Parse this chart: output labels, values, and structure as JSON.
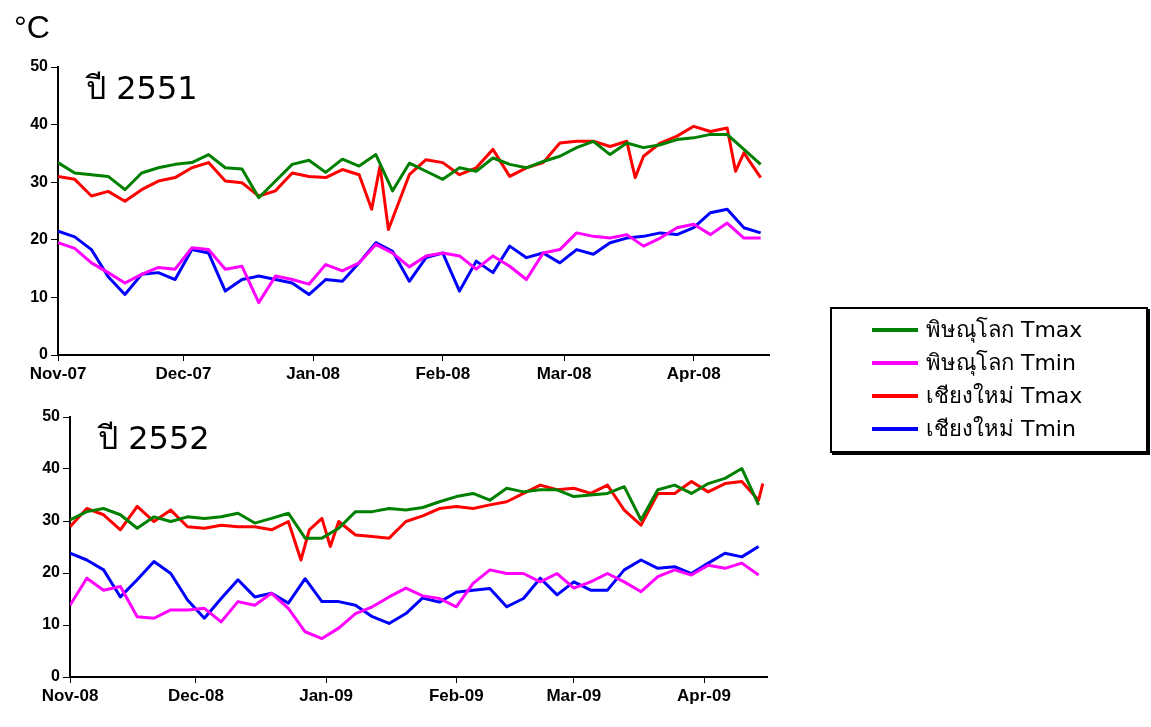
{
  "chart_data": [
    {
      "type": "line",
      "title": "ปี 2551",
      "ylabel": "°C",
      "x": [
        "2007-11-01",
        "2007-11-05",
        "2007-11-09",
        "2007-11-13",
        "2007-11-17",
        "2007-11-21",
        "2007-11-25",
        "2007-11-29",
        "2007-12-03",
        "2007-12-07",
        "2007-12-11",
        "2007-12-15",
        "2007-12-19",
        "2007-12-23",
        "2007-12-27",
        "2007-12-31",
        "2008-01-04",
        "2008-01-08",
        "2008-01-12",
        "2008-01-16",
        "2008-01-20",
        "2008-01-24",
        "2008-01-28",
        "2008-02-01",
        "2008-02-05",
        "2008-02-09",
        "2008-02-13",
        "2008-02-17",
        "2008-02-21",
        "2008-02-25",
        "2008-02-29",
        "2008-03-04",
        "2008-03-08",
        "2008-03-12",
        "2008-03-16",
        "2008-03-20",
        "2008-03-24",
        "2008-03-28",
        "2008-04-01",
        "2008-04-05",
        "2008-04-09",
        "2008-04-13",
        "2008-04-17"
      ],
      "series": [
        {
          "name": "พิษณุโลก Tmax",
          "color": "#008000",
          "values": [
            33.4,
            31.6,
            31.3,
            31.0,
            28.7,
            31.6,
            32.5,
            33.1,
            33.4,
            34.8,
            32.5,
            32.3,
            27.3,
            30.2,
            33.1,
            33.8,
            31.7,
            34.0,
            32.8,
            34.8,
            28.5,
            33.3,
            31.9,
            30.5,
            32.5,
            31.9,
            34.2,
            33.1,
            32.5,
            33.6,
            34.5,
            36.0,
            37.1,
            34.8,
            36.8,
            36.0,
            36.5,
            37.4,
            37.7,
            38.3,
            38.3,
            35.7,
            33.1
          ]
        },
        {
          "name": "พิษณุโลก Tmin",
          "color": "#ff00ff",
          "values": [
            19.5,
            18.5,
            16.0,
            14.3,
            12.5,
            14.0,
            15.2,
            14.9,
            18.6,
            18.3,
            14.9,
            15.4,
            9.1,
            13.7,
            13.1,
            12.3,
            15.7,
            14.6,
            16.0,
            19.2,
            17.7,
            15.3,
            17.2,
            17.7,
            17.2,
            14.9,
            17.2,
            15.4,
            13.1,
            17.7,
            18.3,
            21.2,
            20.6,
            20.3,
            20.9,
            18.9,
            20.3,
            22.1,
            22.7,
            20.9,
            22.9,
            20.3,
            20.3
          ]
        },
        {
          "name": "เชียงใหม่ Tmax",
          "color": "#ff0000",
          "x": [
            "2007-11-01",
            "2007-11-05",
            "2007-11-09",
            "2007-11-13",
            "2007-11-17",
            "2007-11-21",
            "2007-11-25",
            "2007-11-29",
            "2007-12-03",
            "2007-12-07",
            "2007-12-11",
            "2007-12-15",
            "2007-12-19",
            "2007-12-23",
            "2007-12-27",
            "2007-12-31",
            "2008-01-04",
            "2008-01-08",
            "2008-01-12",
            "2008-01-15",
            "2008-01-17",
            "2008-01-19",
            "2008-01-24",
            "2008-01-28",
            "2008-02-01",
            "2008-02-05",
            "2008-02-09",
            "2008-02-13",
            "2008-02-17",
            "2008-02-21",
            "2008-02-25",
            "2008-02-29",
            "2008-03-04",
            "2008-03-08",
            "2008-03-12",
            "2008-03-16",
            "2008-03-18",
            "2008-03-20",
            "2008-03-24",
            "2008-03-28",
            "2008-04-01",
            "2008-04-05",
            "2008-04-09",
            "2008-04-11",
            "2008-04-13",
            "2008-04-17"
          ],
          "values": [
            31.0,
            30.5,
            27.6,
            28.4,
            26.7,
            28.7,
            30.2,
            30.8,
            32.5,
            33.4,
            30.2,
            29.9,
            27.6,
            28.5,
            31.6,
            31.0,
            30.8,
            32.2,
            31.3,
            25.3,
            32.8,
            21.8,
            31.3,
            33.9,
            33.4,
            31.3,
            32.5,
            35.7,
            31.0,
            32.5,
            33.4,
            36.8,
            37.1,
            37.1,
            36.2,
            37.1,
            30.8,
            34.5,
            36.8,
            38.0,
            39.7,
            38.8,
            39.4,
            31.9,
            35.1,
            30.8
          ]
        },
        {
          "name": "เชียงใหม่ Tmin",
          "color": "#0000ff",
          "values": [
            21.5,
            20.5,
            18.3,
            13.6,
            10.5,
            14.0,
            14.3,
            13.1,
            18.3,
            17.7,
            11.1,
            13.1,
            13.7,
            13.1,
            12.5,
            10.5,
            13.1,
            12.8,
            16.0,
            19.5,
            18.0,
            12.8,
            16.9,
            17.7,
            11.1,
            16.3,
            14.3,
            18.9,
            16.9,
            17.7,
            16.0,
            18.3,
            17.5,
            19.5,
            20.3,
            20.6,
            21.2,
            20.9,
            22.1,
            24.7,
            25.3,
            22.1,
            21.2
          ]
        }
      ],
      "xlim": [
        "2007-11-01",
        "2008-04-19"
      ],
      "xticks": [
        {
          "value": "2007-11-01",
          "label": "Nov-07"
        },
        {
          "value": "2007-12-01",
          "label": "Dec-07"
        },
        {
          "value": "2008-01-01",
          "label": "Jan-08"
        },
        {
          "value": "2008-02-01",
          "label": "Feb-08"
        },
        {
          "value": "2008-03-01",
          "label": "Mar-08"
        },
        {
          "value": "2008-04-01",
          "label": "Apr-08"
        }
      ],
      "ylim": [
        0,
        50
      ],
      "yticks": [
        0,
        10,
        20,
        30,
        40,
        50
      ],
      "legend": "right"
    },
    {
      "type": "line",
      "title": "ปี 2552",
      "x": [
        "2008-11-01",
        "2008-11-05",
        "2008-11-09",
        "2008-11-13",
        "2008-11-17",
        "2008-11-21",
        "2008-11-25",
        "2008-11-29",
        "2008-12-03",
        "2008-12-07",
        "2008-12-11",
        "2008-12-15",
        "2008-12-19",
        "2008-12-23",
        "2008-12-27",
        "2008-12-31",
        "2009-01-04",
        "2009-01-08",
        "2009-01-12",
        "2009-01-16",
        "2009-01-20",
        "2009-01-24",
        "2009-01-28",
        "2009-02-01",
        "2009-02-05",
        "2009-02-09",
        "2009-02-13",
        "2009-02-17",
        "2009-02-21",
        "2009-02-25",
        "2009-03-01",
        "2009-03-05",
        "2009-03-09",
        "2009-03-13",
        "2009-03-17",
        "2009-03-21",
        "2009-03-25",
        "2009-03-29",
        "2009-04-02",
        "2009-04-06",
        "2009-04-10",
        "2009-04-14"
      ],
      "series": [
        {
          "color": "#008000",
          "values": [
            30.2,
            31.8,
            32.4,
            31.2,
            28.6,
            30.8,
            29.9,
            30.8,
            30.5,
            30.8,
            31.5,
            29.6,
            30.5,
            31.5,
            26.7,
            26.7,
            28.6,
            31.8,
            31.8,
            32.4,
            32.1,
            32.6,
            33.7,
            34.7,
            35.3,
            34.0,
            36.3,
            35.6,
            36.0,
            36.0,
            34.7,
            35.0,
            35.3,
            36.6,
            30.2,
            36.0,
            36.9,
            35.3,
            37.2,
            38.2,
            40.1,
            33.1
          ]
        },
        {
          "color": "#ff00ff",
          "values": [
            13.8,
            19.0,
            16.7,
            17.4,
            11.6,
            11.3,
            12.9,
            12.9,
            13.2,
            10.6,
            14.5,
            13.8,
            16.1,
            13.2,
            8.7,
            7.4,
            9.4,
            12.2,
            13.5,
            15.4,
            17.1,
            15.6,
            15.1,
            13.5,
            18.0,
            20.6,
            19.9,
            19.9,
            18.3,
            19.9,
            17.1,
            18.3,
            19.9,
            18.3,
            16.4,
            19.3,
            20.6,
            19.6,
            21.5,
            20.9,
            21.9,
            19.6
          ]
        },
        {
          "color": "#ff0000",
          "x": [
            "2008-11-01",
            "2008-11-05",
            "2008-11-09",
            "2008-11-13",
            "2008-11-17",
            "2008-11-21",
            "2008-11-25",
            "2008-11-29",
            "2008-12-03",
            "2008-12-07",
            "2008-12-11",
            "2008-12-15",
            "2008-12-19",
            "2008-12-23",
            "2008-12-26",
            "2008-12-28",
            "2008-12-31",
            "2009-01-02",
            "2009-01-04",
            "2009-01-08",
            "2009-01-12",
            "2009-01-16",
            "2009-01-20",
            "2009-01-24",
            "2009-01-28",
            "2009-02-01",
            "2009-02-05",
            "2009-02-09",
            "2009-02-13",
            "2009-02-17",
            "2009-02-21",
            "2009-02-25",
            "2009-03-01",
            "2009-03-05",
            "2009-03-09",
            "2009-03-13",
            "2009-03-17",
            "2009-03-21",
            "2009-03-25",
            "2009-03-29",
            "2009-04-02",
            "2009-04-06",
            "2009-04-10",
            "2009-04-14",
            "2009-04-15"
          ],
          "values": [
            28.9,
            32.4,
            31.2,
            28.3,
            32.8,
            29.9,
            32.1,
            28.9,
            28.6,
            29.2,
            28.9,
            28.9,
            28.3,
            29.9,
            22.5,
            28.3,
            30.5,
            25.1,
            29.9,
            27.3,
            27.0,
            26.7,
            29.9,
            31.0,
            32.4,
            32.8,
            32.4,
            33.1,
            33.7,
            35.3,
            36.9,
            36.0,
            36.3,
            35.3,
            36.9,
            32.1,
            29.2,
            35.3,
            35.3,
            37.6,
            35.6,
            37.2,
            37.6,
            34.0,
            37.2
          ]
        },
        {
          "color": "#0000ff",
          "values": [
            23.8,
            22.5,
            20.6,
            15.4,
            18.7,
            22.2,
            19.9,
            14.8,
            11.3,
            15.1,
            18.7,
            15.4,
            16.1,
            14.2,
            18.9,
            14.5,
            14.5,
            13.8,
            11.6,
            10.3,
            12.2,
            15.2,
            14.4,
            16.3,
            16.7,
            17.0,
            13.5,
            15.1,
            19.0,
            15.8,
            18.3,
            16.7,
            16.7,
            20.6,
            22.5,
            20.9,
            21.2,
            19.9,
            21.9,
            23.8,
            23.1,
            25.1
          ]
        }
      ],
      "xlim": [
        "2008-11-01",
        "2009-04-16"
      ],
      "xticks": [
        {
          "value": "2008-11-01",
          "label": "Nov-08"
        },
        {
          "value": "2008-12-01",
          "label": "Dec-08"
        },
        {
          "value": "2009-01-01",
          "label": "Jan-09"
        },
        {
          "value": "2009-02-01",
          "label": "Feb-09"
        },
        {
          "value": "2009-03-01",
          "label": "Mar-09"
        },
        {
          "value": "2009-04-01",
          "label": "Apr-09"
        }
      ],
      "ylim": [
        0,
        50
      ],
      "yticks": [
        0,
        10,
        20,
        30,
        40,
        50
      ]
    }
  ]
}
